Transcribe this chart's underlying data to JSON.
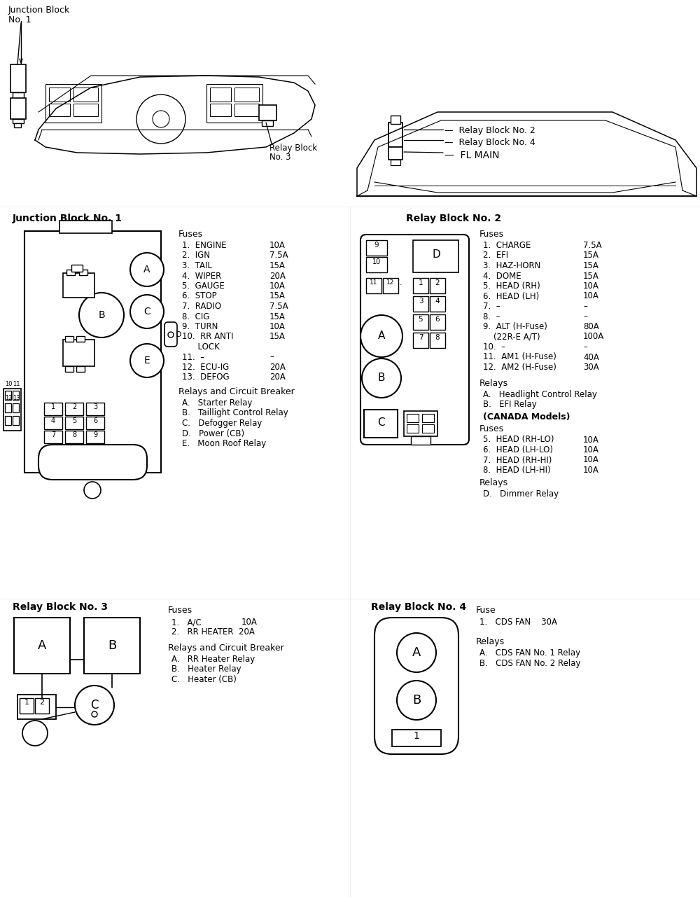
{
  "bg_color": "#ffffff",
  "jb1_fuses": [
    [
      "1.  ENGINE",
      "10A"
    ],
    [
      "2.  IGN",
      "7.5A"
    ],
    [
      "3.  TAIL",
      "15A"
    ],
    [
      "4.  WIPER",
      "20A"
    ],
    [
      "5.  GAUGE",
      "10A"
    ],
    [
      "6.  STOP",
      "15A"
    ],
    [
      "7.  RADIO",
      "7.5A"
    ],
    [
      "8.  CIG",
      "15A"
    ],
    [
      "9.  TURN",
      "10A"
    ],
    [
      "10.  RR ANTI",
      "15A"
    ],
    [
      "      LOCK",
      ""
    ],
    [
      "11.  –",
      "–"
    ],
    [
      "12.  ECU-IG",
      "20A"
    ],
    [
      "13.  DEFOG",
      "20A"
    ]
  ],
  "jb1_relays": [
    "A.   Starter Relay",
    "B.   Taillight Control Relay",
    "C.   Defogger Relay",
    "D.   Power (CB)",
    "E.   Moon Roof Relay"
  ],
  "rb2_fuses": [
    [
      "1.  CHARGE",
      "7.5A"
    ],
    [
      "2.  EFI",
      "15A"
    ],
    [
      "3.  HAZ-HORN",
      "15A"
    ],
    [
      "4.  DOME",
      "15A"
    ],
    [
      "5.  HEAD (RH)",
      "10A"
    ],
    [
      "6.  HEAD (LH)",
      "10A"
    ],
    [
      "7.  –",
      "–"
    ],
    [
      "8.  –",
      "–"
    ],
    [
      "9.  ALT (H-Fuse)",
      "80A"
    ],
    [
      "    (22R-E A/T)",
      "100A"
    ],
    [
      "10.  –",
      "–"
    ],
    [
      "11.  AM1 (H-Fuse)",
      "40A"
    ],
    [
      "12.  AM2 (H-Fuse)",
      "30A"
    ]
  ],
  "rb2_relays": [
    "A.   Headlight Control Relay",
    "B.   EFI Relay"
  ],
  "canada_fuses": [
    [
      "5.  HEAD (RH-LO)",
      "10A"
    ],
    [
      "6.  HEAD (LH-LO)",
      "10A"
    ],
    [
      "7.  HEAD (RH-HI)",
      "10A"
    ],
    [
      "8.  HEAD (LH-HI)",
      "10A"
    ]
  ],
  "rb3_fuses": [
    [
      "1.   A/C",
      "10A"
    ],
    [
      "2.   RR HEATER",
      "20A"
    ]
  ],
  "rb3_relays": [
    "A.   RR Heater Relay",
    "B.   Heater Relay",
    "C.   Heater (CB)"
  ],
  "rb4_fuses": [
    "1.   CDS FAN    30A"
  ],
  "rb4_relays": [
    "A.   CDS FAN No. 1 Relay",
    "B.   CDS FAN No. 2 Relay"
  ]
}
